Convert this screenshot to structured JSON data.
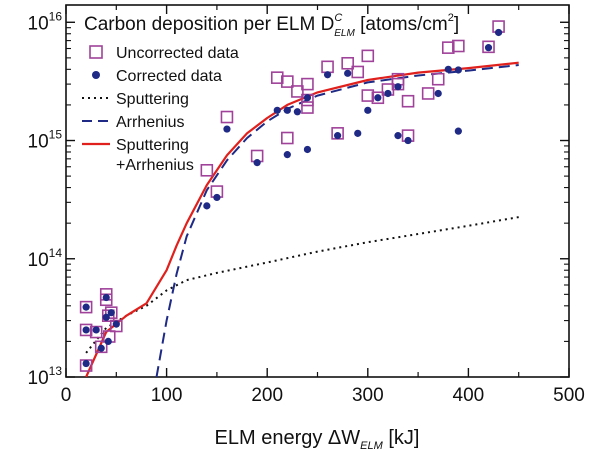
{
  "chart_data": {
    "type": "scatter",
    "title": {
      "main": "Carbon deposition per ELM D",
      "sup": "C",
      "sub": "ELM",
      "units_open": " [atoms/cm",
      "units_sup": "2",
      "units_close": "]"
    },
    "xlabel": {
      "main": "ELM energy ΔW",
      "sub": "ELM",
      "units": " [kJ]"
    },
    "xlim": [
      0,
      500
    ],
    "ylim": [
      10000000000000.0,
      1.4e+16
    ],
    "yscale": "log",
    "x_ticks": [
      "0",
      "100",
      "200",
      "300",
      "400",
      "500"
    ],
    "y_ticks": [
      {
        "base": "10",
        "exp": "13",
        "value": 10000000000000.0
      },
      {
        "base": "10",
        "exp": "14",
        "value": 100000000000000.0
      },
      {
        "base": "10",
        "exp": "15",
        "value": 1000000000000000.0
      },
      {
        "base": "10",
        "exp": "16",
        "value": 1e+16
      }
    ],
    "colors": {
      "uncorrected": "#a0429a",
      "corrected": "#1e2a85",
      "sputtering": "#111111",
      "arrhenius": "#1e2a85",
      "combined": "#e0201c"
    },
    "legend_position": "top-left",
    "legend": [
      {
        "label": "Uncorrected data",
        "marker": "open-square",
        "color": "#a0429a"
      },
      {
        "label": "Corrected data",
        "marker": "filled-circle",
        "color": "#1e2a85"
      },
      {
        "label": "Sputtering",
        "line": "dotted",
        "color": "#111111"
      },
      {
        "label": "Arrhenius",
        "line": "dashed",
        "color": "#1e2a85"
      },
      {
        "label": "Sputtering",
        "label2": "+Arrhenius",
        "line": "solid",
        "color": "#e0201c"
      }
    ],
    "series": [
      {
        "name": "Uncorrected data",
        "marker": "open-square",
        "points": [
          [
            20,
            39000000000000.0
          ],
          [
            20,
            25000000000000.0
          ],
          [
            20,
            12500000000000.0
          ],
          [
            30,
            24000000000000.0
          ],
          [
            35,
            18000000000000.0
          ],
          [
            40,
            50000000000000.0
          ],
          [
            40,
            45000000000000.0
          ],
          [
            42,
            33000000000000.0
          ],
          [
            43,
            22000000000000.0
          ],
          [
            45,
            35000000000000.0
          ],
          [
            50,
            27000000000000.0
          ],
          [
            140,
            560000000000000.0
          ],
          [
            150,
            370000000000000.0
          ],
          [
            160,
            1580000000000000.0
          ],
          [
            190,
            740000000000000.0
          ],
          [
            210,
            3400000000000000.0
          ],
          [
            220,
            3150000000000000.0
          ],
          [
            220,
            1050000000000000.0
          ],
          [
            230,
            2600000000000000.0
          ],
          [
            240,
            3000000000000000.0
          ],
          [
            240,
            2200000000000000.0
          ],
          [
            240,
            1900000000000000.0
          ],
          [
            260,
            4200000000000000.0
          ],
          [
            270,
            1150000000000000.0
          ],
          [
            280,
            4500000000000000.0
          ],
          [
            290,
            3800000000000000.0
          ],
          [
            300,
            5200000000000000.0
          ],
          [
            300,
            2400000000000000.0
          ],
          [
            310,
            2300000000000000.0
          ],
          [
            320,
            2700000000000000.0
          ],
          [
            330,
            3300000000000000.0
          ],
          [
            330,
            3000000000000000.0
          ],
          [
            340,
            2150000000000000.0
          ],
          [
            340,
            1100000000000000.0
          ],
          [
            360,
            2500000000000000.0
          ],
          [
            370,
            3300000000000000.0
          ],
          [
            380,
            6100000000000000.0
          ],
          [
            390,
            6300000000000000.0
          ],
          [
            420,
            6200000000000000.0
          ],
          [
            430,
            9200000000000000.0
          ]
        ]
      },
      {
        "name": "Corrected data",
        "marker": "filled-circle",
        "points": [
          [
            20,
            39000000000000.0
          ],
          [
            20,
            25000000000000.0
          ],
          [
            20,
            13000000000000.0
          ],
          [
            30,
            25000000000000.0
          ],
          [
            35,
            17500000000000.0
          ],
          [
            40,
            47000000000000.0
          ],
          [
            40,
            32000000000000.0
          ],
          [
            42,
            20000000000000.0
          ],
          [
            45,
            35000000000000.0
          ],
          [
            50,
            28000000000000.0
          ],
          [
            140,
            280000000000000.0
          ],
          [
            150,
            330000000000000.0
          ],
          [
            160,
            1250000000000000.0
          ],
          [
            190,
            650000000000000.0
          ],
          [
            210,
            1800000000000000.0
          ],
          [
            220,
            1800000000000000.0
          ],
          [
            220,
            760000000000000.0
          ],
          [
            230,
            1750000000000000.0
          ],
          [
            240,
            2300000000000000.0
          ],
          [
            240,
            840000000000000.0
          ],
          [
            260,
            3600000000000000.0
          ],
          [
            270,
            1100000000000000.0
          ],
          [
            280,
            3700000000000000.0
          ],
          [
            290,
            1150000000000000.0
          ],
          [
            300,
            1800000000000000.0
          ],
          [
            310,
            2300000000000000.0
          ],
          [
            320,
            2500000000000000.0
          ],
          [
            330,
            2850000000000000.0
          ],
          [
            330,
            1100000000000000.0
          ],
          [
            340,
            1000000000000000.0
          ],
          [
            370,
            2500000000000000.0
          ],
          [
            380,
            4000000000000000.0
          ],
          [
            390,
            3950000000000000.0
          ],
          [
            390,
            1200000000000000.0
          ],
          [
            420,
            6100000000000000.0
          ],
          [
            430,
            8200000000000000.0
          ]
        ]
      },
      {
        "name": "Sputtering",
        "line": "dotted",
        "points": [
          [
            20,
            16000000000000.0
          ],
          [
            40,
            26000000000000.0
          ],
          [
            60,
            33000000000000.0
          ],
          [
            80,
            40000000000000.0
          ],
          [
            100,
            54000000000000.0
          ],
          [
            120,
            66000000000000.0
          ],
          [
            150,
            76000000000000.0
          ],
          [
            200,
            93000000000000.0
          ],
          [
            250,
            115000000000000.0
          ],
          [
            300,
            138000000000000.0
          ],
          [
            350,
            162000000000000.0
          ],
          [
            400,
            190000000000000.0
          ],
          [
            450,
            225000000000000.0
          ]
        ]
      },
      {
        "name": "Arrhenius",
        "line": "dashed",
        "points": [
          [
            90,
            10000000000000.0
          ],
          [
            100,
            30000000000000.0
          ],
          [
            110,
            75000000000000.0
          ],
          [
            120,
            155000000000000.0
          ],
          [
            140,
            380000000000000.0
          ],
          [
            160,
            680000000000000.0
          ],
          [
            180,
            1050000000000000.0
          ],
          [
            200,
            1450000000000000.0
          ],
          [
            220,
            1850000000000000.0
          ],
          [
            250,
            2400000000000000.0
          ],
          [
            300,
            3100000000000000.0
          ],
          [
            350,
            3550000000000000.0
          ],
          [
            400,
            3900000000000000.0
          ],
          [
            450,
            4350000000000000.0
          ]
        ]
      },
      {
        "name": "Sputtering +Arrhenius",
        "line": "solid",
        "points": [
          [
            20,
            10000000000000.0
          ],
          [
            40,
            24000000000000.0
          ],
          [
            60,
            33000000000000.0
          ],
          [
            80,
            42000000000000.0
          ],
          [
            100,
            80000000000000.0
          ],
          [
            110,
            130000000000000.0
          ],
          [
            120,
            200000000000000.0
          ],
          [
            140,
            420000000000000.0
          ],
          [
            160,
            750000000000000.0
          ],
          [
            180,
            1150000000000000.0
          ],
          [
            200,
            1550000000000000.0
          ],
          [
            220,
            2000000000000000.0
          ],
          [
            250,
            2550000000000000.0
          ],
          [
            300,
            3250000000000000.0
          ],
          [
            350,
            3750000000000000.0
          ],
          [
            400,
            4100000000000000.0
          ],
          [
            450,
            4550000000000000.0
          ]
        ]
      }
    ]
  }
}
